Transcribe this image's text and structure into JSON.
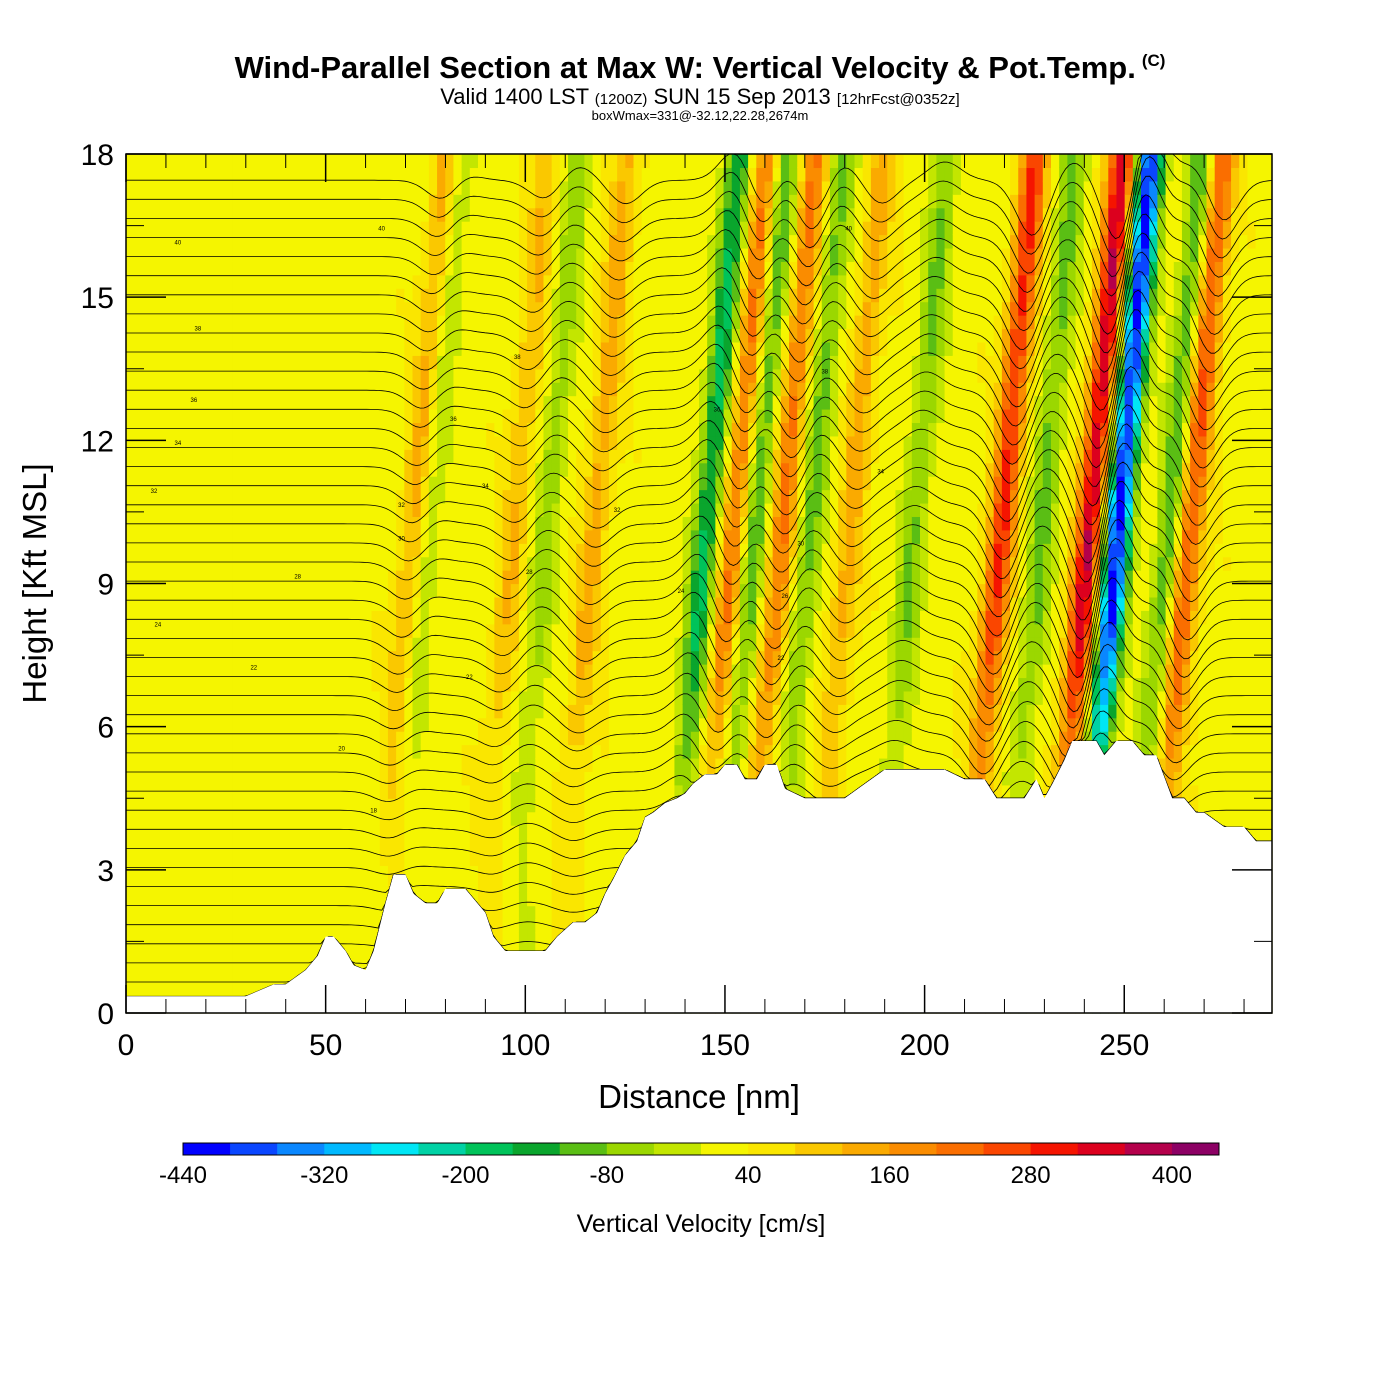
{
  "header": {
    "title": "Wind-Parallel Section at Max W: Vertical Velocity & Pot.Temp.",
    "copyright": "(C)",
    "subtitle_pre": "Valid 1400 LST",
    "subtitle_z": "(1200Z)",
    "subtitle_mid": "SUN 15 Sep 2013",
    "subtitle_fcst": "[12hrFcst@0352z]",
    "boxinfo": "boxWmax=331@-32.12,22.28,2674m"
  },
  "chart_data": {
    "type": "heatmap",
    "title": "Wind-Parallel Section at Max W: Vertical Velocity & Pot.Temp.",
    "xlabel": "Distance [nm]",
    "ylabel": "Height [Kft MSL]",
    "xlim": [
      0,
      287
    ],
    "ylim": [
      0,
      18
    ],
    "x_ticks": [
      0,
      50,
      100,
      150,
      200,
      250
    ],
    "y_ticks": [
      0,
      3,
      6,
      9,
      12,
      15,
      18
    ],
    "colorbar": {
      "title": "Vertical Velocity [cm/s]",
      "levels": [
        -440,
        -400,
        -360,
        -320,
        -280,
        -240,
        -200,
        -160,
        -120,
        -80,
        -40,
        0,
        40,
        80,
        120,
        160,
        200,
        240,
        280,
        320,
        360,
        400,
        440
      ],
      "colors": [
        "#0000ff",
        "#0a46ff",
        "#0a87ff",
        "#00b9ff",
        "#00e6f5",
        "#00d2a5",
        "#00c35a",
        "#0aa52d",
        "#5abe14",
        "#9bd700",
        "#c3e600",
        "#f5f500",
        "#fae600",
        "#fac800",
        "#faaa00",
        "#fa8c00",
        "#fa6e00",
        "#fa4600",
        "#f51400",
        "#dc001e",
        "#b4004b",
        "#8c0064"
      ],
      "tick_labels": [
        "-440",
        "-320",
        "-200",
        "-80",
        "40",
        "160",
        "280",
        "400"
      ]
    },
    "terrain_kft": {
      "x": [
        0,
        5,
        10,
        15,
        20,
        25,
        30,
        37,
        40,
        45,
        48,
        50,
        52,
        55,
        57,
        60,
        62,
        65,
        67,
        70,
        72,
        75,
        78,
        80,
        85,
        88,
        90,
        92,
        95,
        100,
        105,
        108,
        112,
        115,
        118,
        120,
        122,
        125,
        128,
        130,
        132,
        135,
        138,
        140,
        142,
        145,
        148,
        150,
        153,
        155,
        158,
        160,
        163,
        165,
        170,
        175,
        180,
        185,
        190,
        195,
        200,
        205,
        210,
        215,
        218,
        222,
        225,
        228,
        230,
        232,
        235,
        237,
        238,
        240,
        243,
        245,
        248,
        252,
        255,
        258,
        262,
        265,
        268,
        270,
        275,
        280,
        283,
        287
      ],
      "y": [
        0.35,
        0.35,
        0.35,
        0.35,
        0.35,
        0.35,
        0.35,
        0.6,
        0.6,
        0.9,
        1.2,
        1.6,
        1.6,
        1.3,
        1.0,
        0.9,
        1.3,
        2.3,
        2.9,
        2.9,
        2.5,
        2.3,
        2.3,
        2.6,
        2.6,
        2.3,
        2.1,
        1.6,
        1.3,
        1.3,
        1.3,
        1.6,
        1.9,
        1.9,
        2.1,
        2.5,
        2.8,
        3.3,
        3.6,
        4.1,
        4.2,
        4.4,
        4.5,
        4.6,
        4.8,
        5.0,
        5.0,
        5.2,
        5.2,
        4.9,
        4.9,
        5.2,
        5.2,
        4.7,
        4.5,
        4.5,
        4.5,
        4.8,
        5.1,
        5.1,
        5.1,
        5.1,
        4.9,
        4.9,
        4.5,
        4.5,
        4.5,
        4.9,
        4.5,
        4.8,
        5.3,
        5.7,
        5.7,
        5.7,
        5.7,
        5.4,
        5.7,
        5.7,
        5.4,
        5.4,
        4.5,
        4.5,
        4.2,
        4.2,
        3.9,
        3.9,
        3.6,
        3.6
      ]
    },
    "wave_updrafts": [
      {
        "x": 67,
        "peak": 130
      },
      {
        "x": 92,
        "peak": 90
      },
      {
        "x": 112,
        "peak": 110
      },
      {
        "x": 147,
        "peak": 190
      },
      {
        "x": 159,
        "peak": 180
      },
      {
        "x": 176,
        "peak": 110
      },
      {
        "x": 214,
        "peak": 260
      },
      {
        "x": 236,
        "peak": 331
      },
      {
        "x": 261,
        "peak": 230
      }
    ],
    "wave_downdrafts": [
      {
        "x": 70,
        "peak": -90
      },
      {
        "x": 100,
        "peak": -90
      },
      {
        "x": 140,
        "peak": -200
      },
      {
        "x": 152,
        "peak": -150
      },
      {
        "x": 166,
        "peak": -120
      },
      {
        "x": 192,
        "peak": -110
      },
      {
        "x": 224,
        "peak": -120
      },
      {
        "x": 243,
        "peak": -440
      },
      {
        "x": 256,
        "peak": -150
      }
    ],
    "theta_labels": [
      "40",
      "38",
      "36",
      "34",
      "32",
      "30",
      "28",
      "26",
      "24",
      "22",
      "20",
      "18"
    ]
  }
}
